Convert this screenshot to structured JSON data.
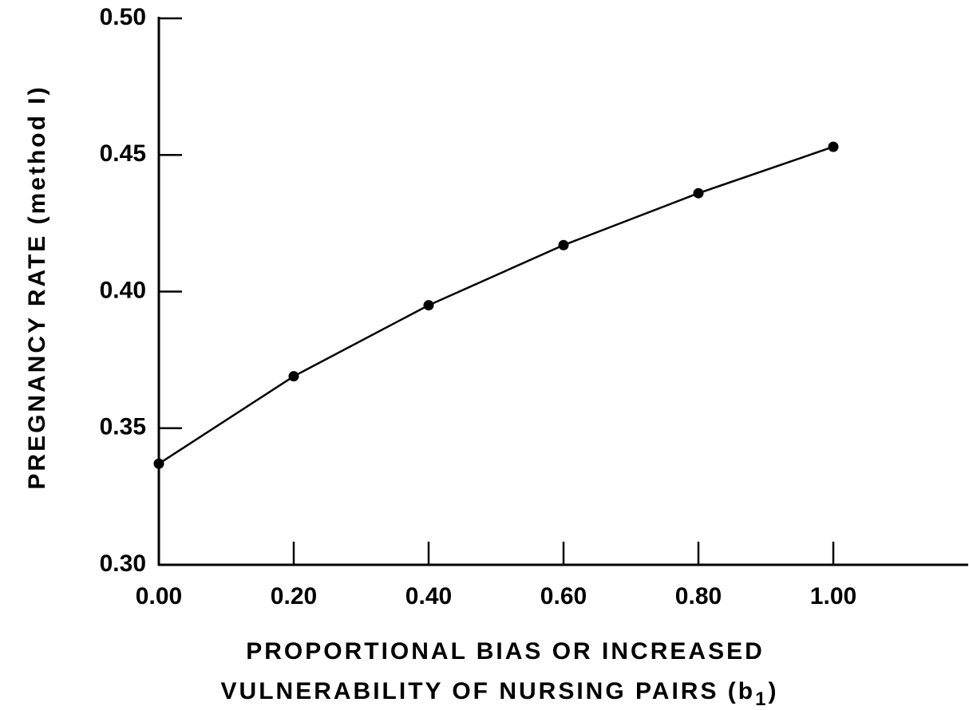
{
  "chart_data": {
    "type": "line",
    "title": "",
    "ylabel": "PREGNANCY RATE (method I)",
    "xlabel_lines": [
      "PROPORTIONAL BIAS OR INCREASED",
      "VULNERABILITY OF NURSING PAIRS (b"
    ],
    "xlabel_subscript": "1",
    "xlabel_suffix": ")",
    "xlim": [
      0.0,
      1.2
    ],
    "ylim": [
      0.3,
      0.5
    ],
    "x_ticks": [
      0.0,
      0.2,
      0.4,
      0.6,
      0.8,
      1.0
    ],
    "x_tick_labels": [
      "0.00",
      "0.20",
      "0.40",
      "0.60",
      "0.80",
      "1.00"
    ],
    "y_ticks": [
      0.3,
      0.35,
      0.4,
      0.45,
      0.5
    ],
    "y_tick_labels": [
      "0.30",
      "0.35",
      "0.40",
      "0.45",
      "0.50"
    ],
    "grid": false,
    "series": [
      {
        "x": [
          0.0,
          0.2,
          0.4,
          0.6,
          0.8,
          1.0
        ],
        "y": [
          0.337,
          0.369,
          0.395,
          0.417,
          0.436,
          0.453
        ]
      }
    ],
    "colors": {
      "line": "#000000",
      "marker": "#000000"
    }
  }
}
